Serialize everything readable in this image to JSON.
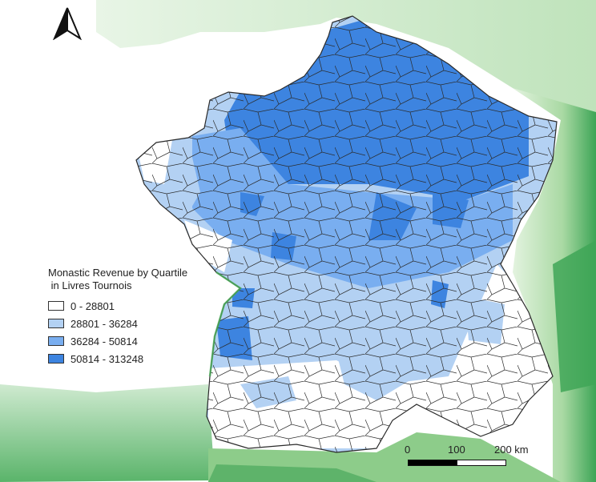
{
  "legend": {
    "title_line1": "Monastic Revenue by Quartile",
    "title_line2": " in Livres Tournois",
    "classes": [
      {
        "label": "0 - 28801",
        "color": "#ffffff"
      },
      {
        "label": "28801 - 36284",
        "color": "#b3d1f3"
      },
      {
        "label": "36284 - 50814",
        "color": "#79aef0"
      },
      {
        "label": "50814 - 313248",
        "color": "#3d84e0"
      }
    ]
  },
  "scale_bar": {
    "labels": [
      "0",
      "100",
      "200 km"
    ]
  },
  "colors": {
    "background": "#ffffff",
    "terrain_light": "#d9efd6",
    "terrain_mid": "#9fd39b",
    "terrain_dark": "#2e9a45",
    "boundary": "#2a2a2a"
  },
  "icons": {
    "north": "north-arrow-icon"
  }
}
